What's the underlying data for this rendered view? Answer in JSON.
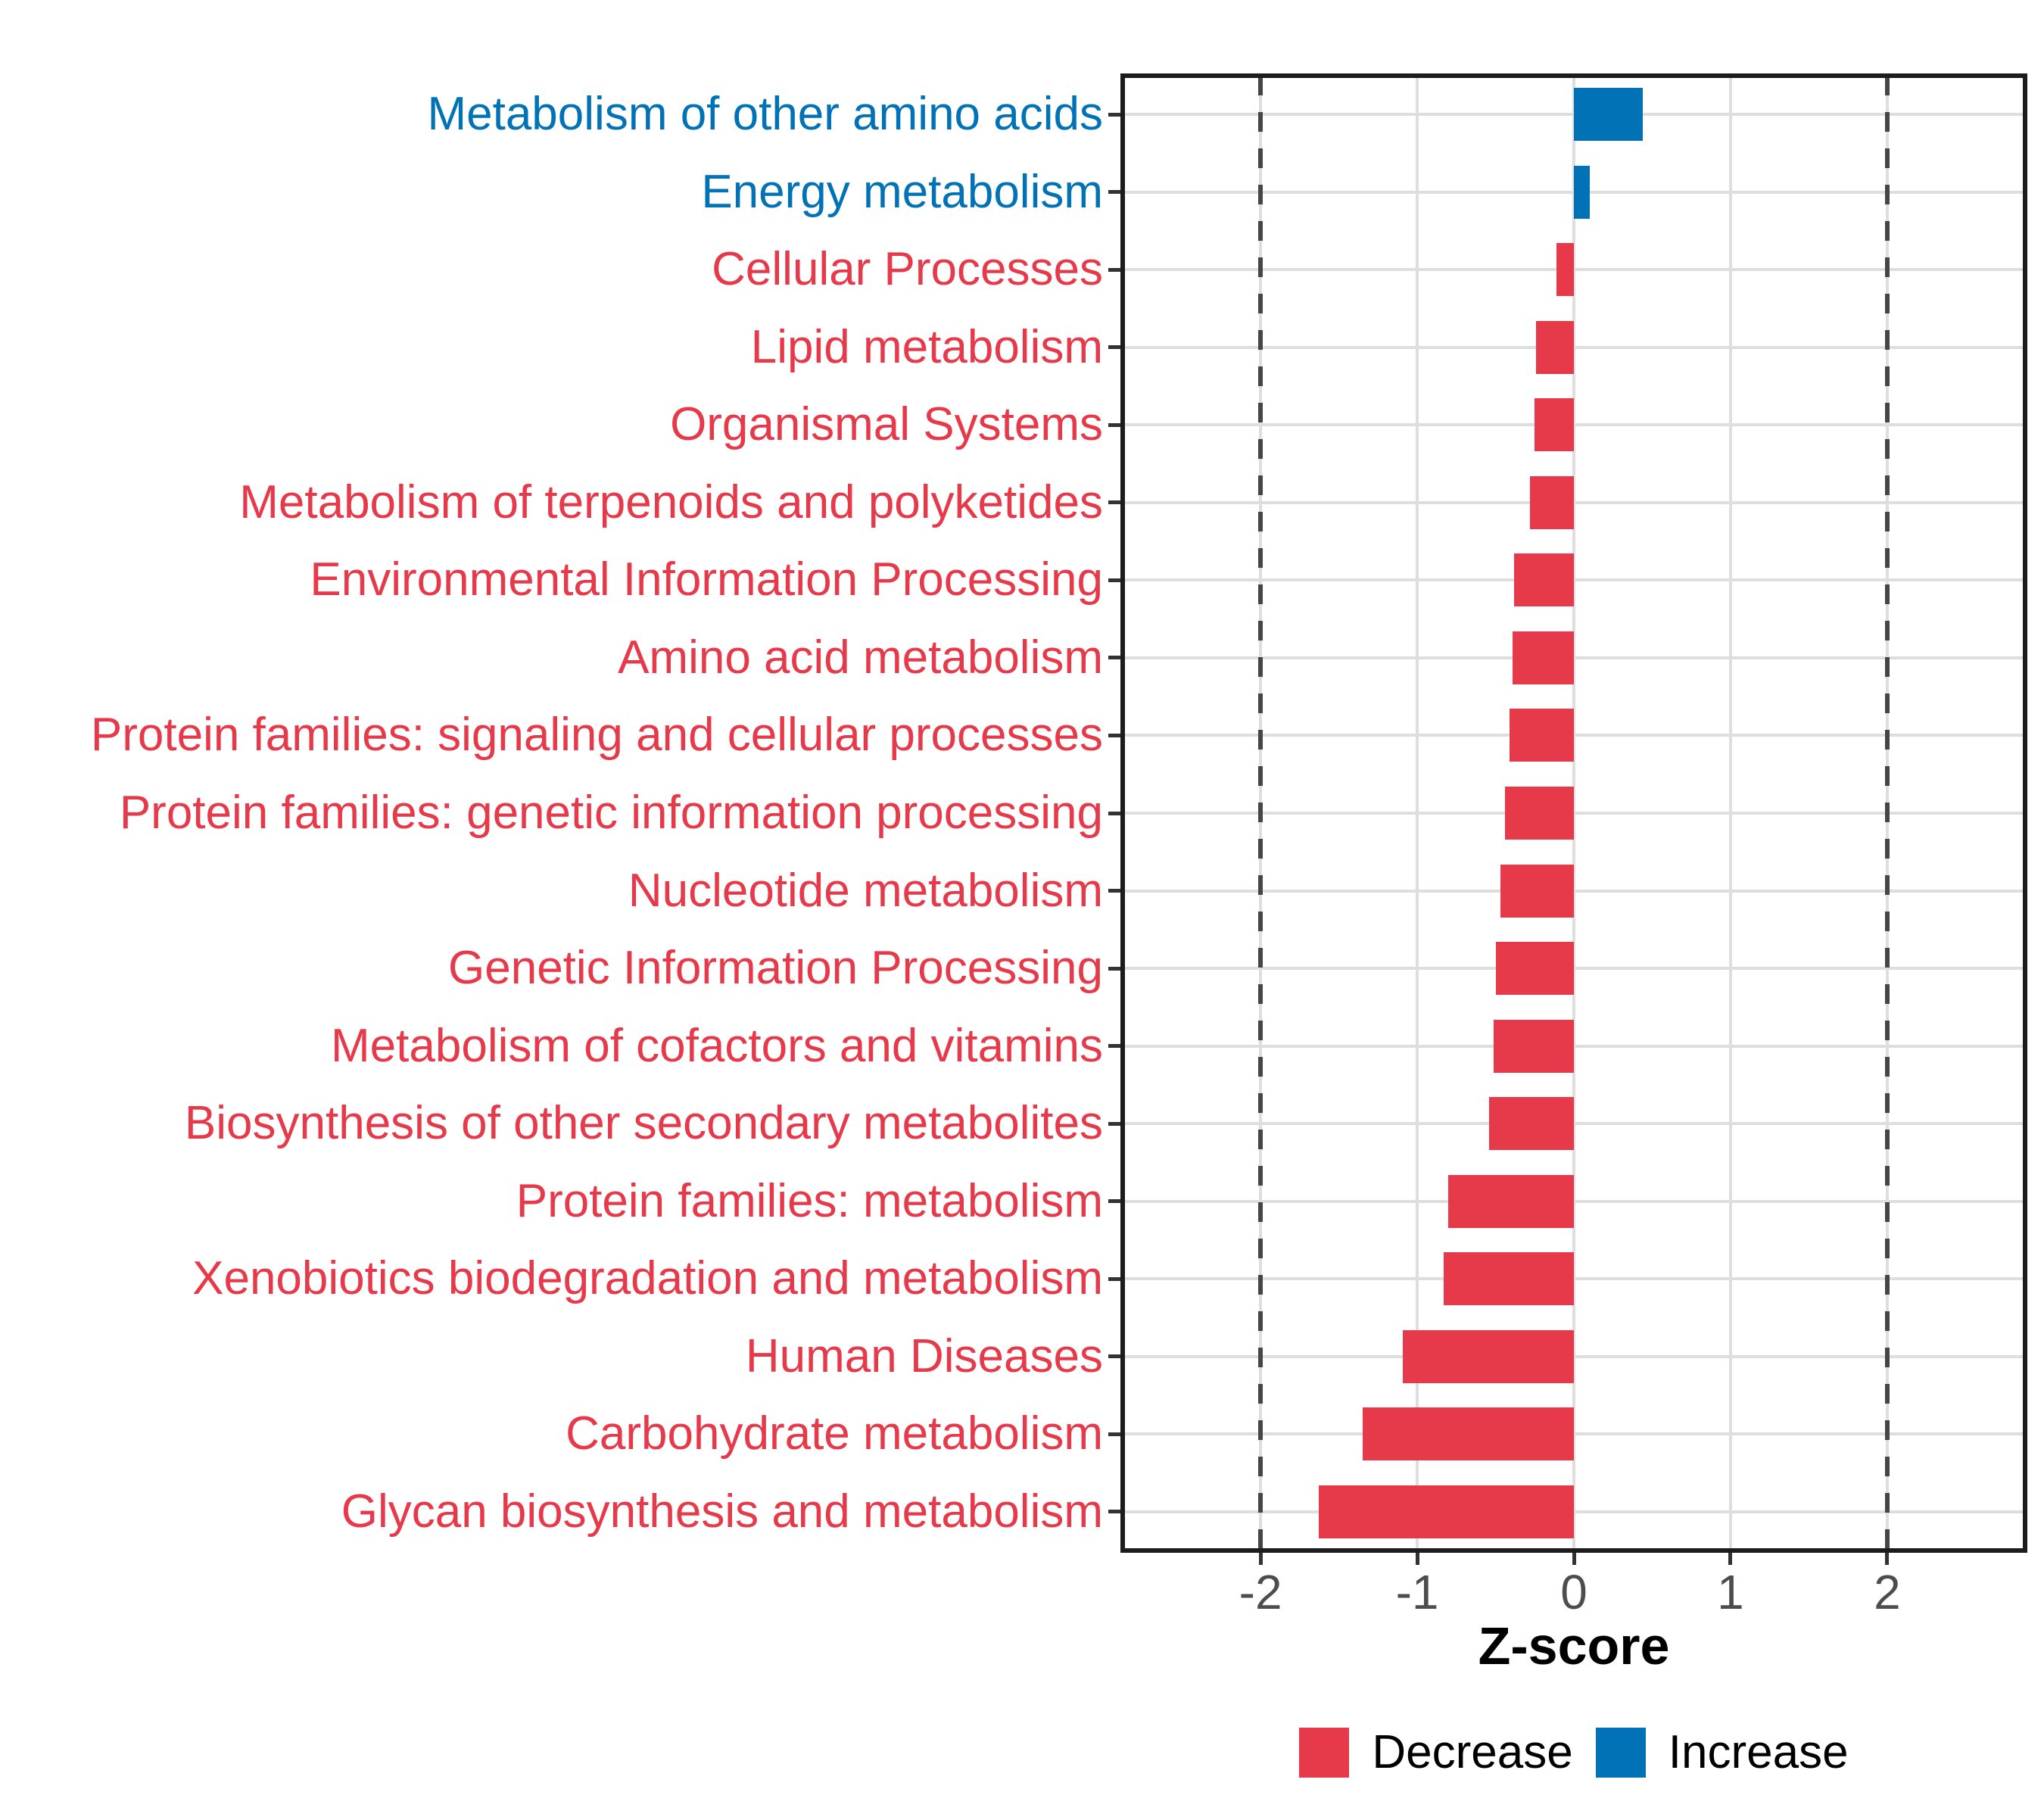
{
  "chart_data": {
    "type": "bar",
    "orientation": "horizontal",
    "title": "",
    "xlabel": "Z-score",
    "categories": [
      "Metabolism of other amino acids",
      "Energy metabolism",
      "Cellular Processes",
      "Lipid metabolism",
      "Organismal Systems",
      "Metabolism of terpenoids and polyketides",
      "Environmental Information Processing",
      "Amino acid metabolism",
      "Protein families: signaling and cellular processes",
      "Protein families: genetic information processing",
      "Nucleotide metabolism",
      "Genetic Information Processing",
      "Metabolism of cofactors and vitamins",
      "Biosynthesis of other secondary metabolites",
      "Protein families: metabolism",
      "Xenobiotics biodegradation and metabolism",
      "Human Diseases",
      "Carbohydrate metabolism",
      "Glycan biosynthesis and metabolism"
    ],
    "values": [
      0.44,
      0.1,
      -0.11,
      -0.24,
      -0.25,
      -0.28,
      -0.38,
      -0.39,
      -0.41,
      -0.44,
      -0.47,
      -0.5,
      -0.51,
      -0.54,
      -0.8,
      -0.83,
      -1.09,
      -1.35,
      -1.63
    ],
    "directions": [
      "increase",
      "increase",
      "decrease",
      "decrease",
      "decrease",
      "decrease",
      "decrease",
      "decrease",
      "decrease",
      "decrease",
      "decrease",
      "decrease",
      "decrease",
      "decrease",
      "decrease",
      "decrease",
      "decrease",
      "decrease",
      "decrease"
    ],
    "series_colors": {
      "decrease": "#E6394A",
      "increase": "#0072B5"
    },
    "x_ticks": [
      {
        "value": -2,
        "label": "-2"
      },
      {
        "value": -1,
        "label": "-1"
      },
      {
        "value": 0,
        "label": "0"
      },
      {
        "value": 1,
        "label": "1"
      },
      {
        "value": 2,
        "label": "2"
      }
    ],
    "x_range": [
      -2.88,
      2.88
    ],
    "reference_lines": [
      -2,
      2
    ],
    "grid": "major-on",
    "legend": {
      "position": "bottom-center",
      "entries": [
        {
          "label": "Decrease",
          "color": "#E6394A"
        },
        {
          "label": "Increase",
          "color": "#0072B5"
        }
      ]
    }
  },
  "style_colors": {
    "grid": "#DEDEDE",
    "dashed_reference": "#464646",
    "tick_mark": "#333333",
    "tick_label": "#4D4D4D",
    "panel_border": "#1C1C1C",
    "background": "#FFFFFF"
  }
}
